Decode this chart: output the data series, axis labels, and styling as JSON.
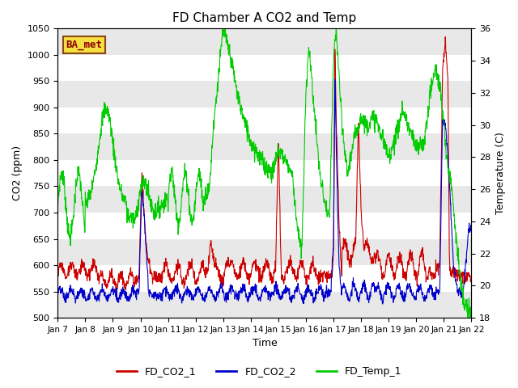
{
  "title": "FD Chamber A CO2 and Temp",
  "xlabel": "Time",
  "ylabel_left": "CO2 (ppm)",
  "ylabel_right": "Temperature (C)",
  "ylim_left": [
    500,
    1050
  ],
  "ylim_right": [
    18,
    36
  ],
  "yticks_left": [
    500,
    550,
    600,
    650,
    700,
    750,
    800,
    850,
    900,
    950,
    1000,
    1050
  ],
  "yticks_right": [
    18,
    20,
    22,
    24,
    26,
    28,
    30,
    32,
    34,
    36
  ],
  "xlim": [
    7,
    22
  ],
  "xtick_labels": [
    "Jan 7",
    "Jan 8",
    "Jan 9",
    "Jan 10",
    "Jan 11",
    "Jan 12",
    "Jan 13",
    "Jan 14",
    "Jan 15",
    "Jan 16",
    "Jan 17",
    "Jan 18",
    "Jan 19",
    "Jan 20",
    "Jan 21",
    "Jan 22"
  ],
  "xtick_positions": [
    7,
    8,
    9,
    10,
    11,
    12,
    13,
    14,
    15,
    16,
    17,
    18,
    19,
    20,
    21,
    22
  ],
  "color_co2_1": "#cc0000",
  "color_co2_2": "#0000cc",
  "color_temp": "#00cc00",
  "legend_labels": [
    "FD_CO2_1",
    "FD_CO2_2",
    "FD_Temp_1"
  ],
  "ba_met_label": "BA_met",
  "ba_met_bg": "#f5e042",
  "ba_met_border": "#8B4513",
  "ba_met_text_color": "#8B0000",
  "background_color": "#ffffff",
  "band_color": "#e8e8e8",
  "title_fontsize": 11,
  "axis_label_fontsize": 9,
  "tick_fontsize": 8,
  "legend_fontsize": 9,
  "linewidth": 0.8
}
